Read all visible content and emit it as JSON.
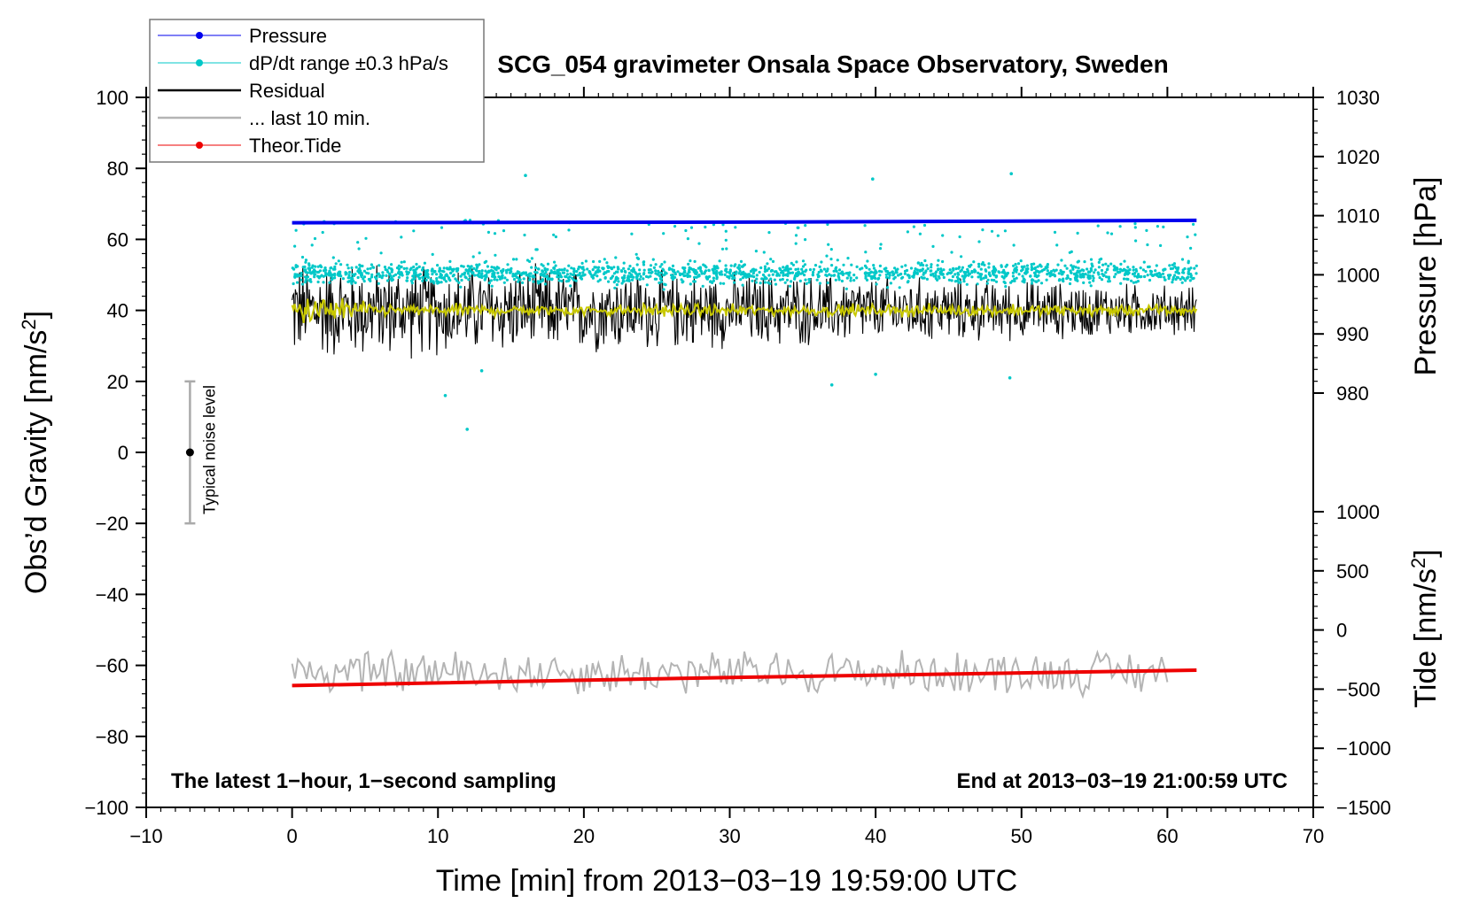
{
  "chart_data": {
    "type": "line",
    "title": "SCG_054 gravimeter Onsala Space Observatory, Sweden",
    "xlabel": "Time [min] from 2013−03−19 19:59:00 UTC",
    "ylabel_left": "Obs’d Gravity [nm/s",
    "ylabel_left_sup": "2",
    "ylabel_left_close": "]",
    "ylabel_right_pressure": "Pressure [hPa]",
    "ylabel_right_tide": "Tide [nm/s",
    "ylabel_right_tide_sup": "2",
    "ylabel_right_tide_close": "]",
    "xlim": [
      -10,
      70
    ],
    "ylim": [
      -100,
      100
    ],
    "pressure_lim": [
      980,
      1030
    ],
    "tide_lim": [
      -1500,
      1000
    ],
    "x_ticks": [
      "−10",
      "0",
      "10",
      "20",
      "30",
      "40",
      "50",
      "60",
      "70"
    ],
    "x_tick_values": [
      -10,
      0,
      10,
      20,
      30,
      40,
      50,
      60,
      70
    ],
    "y_ticks": [
      "100",
      "80",
      "60",
      "40",
      "20",
      "0",
      "−20",
      "−40",
      "−60",
      "−80",
      "−100"
    ],
    "y_tick_values": [
      100,
      80,
      60,
      40,
      20,
      0,
      -20,
      -40,
      -60,
      -80,
      -100
    ],
    "pressure_ticks": [
      "1030",
      "1020",
      "1010",
      "1000",
      "990",
      "980"
    ],
    "pressure_tick_values": [
      1030,
      1020,
      1010,
      1000,
      990,
      980
    ],
    "tide_ticks": [
      "1000",
      "500",
      "0",
      "−500",
      "−1000",
      "−1500"
    ],
    "tide_tick_values": [
      1000,
      500,
      0,
      -500,
      -1000,
      -1500
    ],
    "legend": [
      {
        "label": "Pressure",
        "color": "#0000ee",
        "style": "line-dot"
      },
      {
        "label": "dP/dt range ±0.3 hPa/s",
        "color": "#00c8c8",
        "style": "line-dot"
      },
      {
        "label": "Residual",
        "color": "#000000",
        "style": "line"
      },
      {
        "label": "... last 10 min.",
        "color": "#b4b4b4",
        "style": "line"
      },
      {
        "label": "Theor.Tide",
        "color": "#ee0000",
        "style": "line-dot"
      }
    ],
    "legend_position": "top-left",
    "annotation_left": "The latest 1−hour, 1−second sampling",
    "annotation_right": "End at 2013−03−19 21:00:59 UTC",
    "noise_label": "Typical noise level",
    "noise_bar": {
      "x": -7,
      "center": 0,
      "low": -20,
      "high": 20
    },
    "series": [
      {
        "name": "Pressure",
        "axis": "pressure",
        "color": "#0000ee",
        "x": [
          0,
          31,
          62
        ],
        "values": [
          1008.8,
          1008.9,
          1009.2
        ]
      },
      {
        "name": "dP/dt range ±0.3 hPa/s",
        "axis": "gravity",
        "color": "#00c8c8",
        "x_range": [
          0,
          62
        ],
        "center": 50.5,
        "spread": 4,
        "outliers": [
          [
            2.2,
            65
          ],
          [
            16,
            78
          ],
          [
            39.8,
            77
          ],
          [
            49.3,
            78.5
          ],
          [
            10.5,
            16
          ],
          [
            12,
            6.5
          ],
          [
            13,
            23
          ],
          [
            37,
            19
          ],
          [
            40,
            22
          ],
          [
            49.2,
            21
          ]
        ]
      },
      {
        "name": "Residual",
        "axis": "gravity",
        "color": "#000000",
        "x_range": [
          0,
          62
        ],
        "center": 40,
        "amplitude_start": 16,
        "amplitude_end": 8
      },
      {
        "name": "Residual (smoothed)",
        "axis": "gravity",
        "color": "#c8c800",
        "x_range": [
          0,
          62
        ],
        "center": 40,
        "amplitude": 2.5
      },
      {
        "name": "... last 10 min.",
        "axis": "gravity",
        "color": "#b4b4b4",
        "x_range": [
          0,
          60
        ],
        "center": -62,
        "amplitude": 7
      },
      {
        "name": "Theor.Tide",
        "axis": "tide",
        "color": "#ee0000",
        "x": [
          0,
          31,
          62
        ],
        "values": [
          -470,
          -400,
          -340
        ]
      }
    ]
  }
}
